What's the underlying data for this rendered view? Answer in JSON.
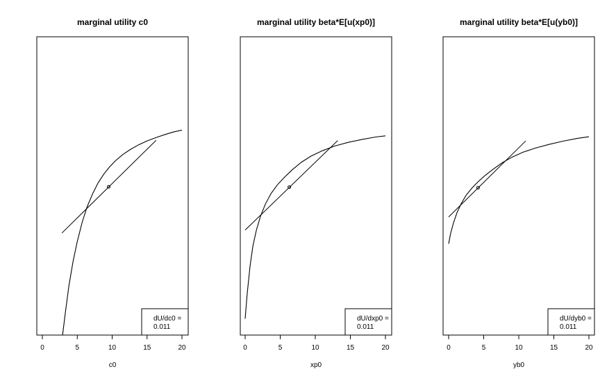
{
  "chart_data": [
    {
      "type": "line",
      "title": "marginal utility c0",
      "xlabel": "c0",
      "ylabel": "",
      "xlim": [
        0,
        20
      ],
      "xticks": [
        0,
        5,
        10,
        15,
        20
      ],
      "utility_curve": {
        "x": [
          2.9,
          3.3,
          3.8,
          4.4,
          5.0,
          5.7,
          6.4,
          7.2,
          8.0,
          8.8,
          9.6,
          10.5,
          11.5,
          12.6,
          13.8,
          15.0,
          16.4,
          17.8,
          19.0,
          20.0
        ],
        "y": [
          0.0,
          0.077,
          0.165,
          0.247,
          0.314,
          0.378,
          0.429,
          0.474,
          0.511,
          0.539,
          0.563,
          0.585,
          0.605,
          0.622,
          0.638,
          0.651,
          0.663,
          0.674,
          0.682,
          0.687
        ]
      },
      "tangent_line": {
        "x": [
          2.8,
          16.3
        ],
        "y": [
          0.342,
          0.653
        ]
      },
      "point": {
        "x": 9.5,
        "y": 0.497
      },
      "legend": {
        "line1": "dU/dc0 =",
        "line2": "0.011",
        "position": "bottom-right"
      }
    },
    {
      "type": "line",
      "title": "marginal utility beta*E[u(xp0)]",
      "xlabel": "xp0",
      "ylabel": "",
      "xlim": [
        0,
        20
      ],
      "xticks": [
        0,
        5,
        10,
        15,
        20
      ],
      "utility_curve": {
        "x": [
          0.0,
          0.3,
          0.7,
          1.1,
          1.6,
          2.2,
          2.9,
          3.7,
          4.6,
          5.6,
          6.7,
          8.0,
          9.4,
          11.0,
          12.8,
          14.7,
          16.7,
          18.6,
          20.0
        ],
        "y": [
          0.055,
          0.14,
          0.232,
          0.298,
          0.352,
          0.399,
          0.44,
          0.475,
          0.504,
          0.529,
          0.554,
          0.579,
          0.6,
          0.618,
          0.634,
          0.646,
          0.656,
          0.664,
          0.668
        ]
      },
      "tangent_line": {
        "x": [
          0.0,
          13.2
        ],
        "y": [
          0.352,
          0.652
        ]
      },
      "point": {
        "x": 6.3,
        "y": 0.496
      },
      "legend": {
        "line1": "dU/dxp0 =",
        "line2": "0.011",
        "position": "bottom-right"
      }
    },
    {
      "type": "line",
      "title": "marginal utility beta*E[u(yb0)]",
      "xlabel": "yb0",
      "ylabel": "",
      "xlim": [
        0,
        20
      ],
      "xticks": [
        0,
        5,
        10,
        15,
        20
      ],
      "utility_curve": {
        "x": [
          0.0,
          0.3,
          0.7,
          1.2,
          1.8,
          2.5,
          3.3,
          4.2,
          5.2,
          6.3,
          7.6,
          9.0,
          10.6,
          12.4,
          14.3,
          16.3,
          18.3,
          20.0
        ],
        "y": [
          0.306,
          0.342,
          0.377,
          0.411,
          0.441,
          0.469,
          0.492,
          0.514,
          0.535,
          0.555,
          0.577,
          0.596,
          0.613,
          0.627,
          0.639,
          0.65,
          0.659,
          0.665
        ]
      },
      "tangent_line": {
        "x": [
          0.0,
          11.0
        ],
        "y": [
          0.396,
          0.651
        ]
      },
      "point": {
        "x": 4.2,
        "y": 0.494
      },
      "legend": {
        "line1": "dU/dyb0 =",
        "line2": "0.011",
        "position": "bottom-right"
      }
    }
  ]
}
